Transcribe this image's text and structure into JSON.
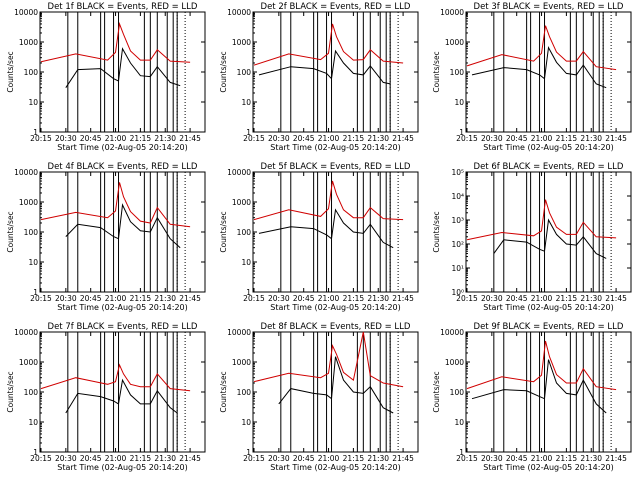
{
  "chart_data": [
    {
      "type": "line",
      "title": "Det 1f BLACK = Events, RED = LLD",
      "xlabel": "Start Time (02-Aug-05 20:14:20)",
      "ylabel": "Counts/sec",
      "ylim": [
        1,
        10000
      ],
      "y_scale": "log",
      "y_ticks": [
        "1",
        "10",
        "100",
        "1000",
        "10000"
      ],
      "x_ticks": [
        "20:15",
        "20:30",
        "20:45",
        "21:00",
        "21:15",
        "21:30",
        "21:45"
      ],
      "grid": false,
      "series": [
        {
          "color": "#000000",
          "x": [
            20.5,
            20.62,
            20.85,
            20.98,
            21.03,
            21.07,
            21.15,
            21.25,
            21.35,
            21.42,
            21.55,
            21.65
          ],
          "y": [
            30,
            120,
            130,
            60,
            50,
            600,
            200,
            75,
            70,
            150,
            45,
            35
          ]
        },
        {
          "color": "#d00000",
          "x": [
            20.25,
            20.6,
            20.92,
            21.0,
            21.04,
            21.08,
            21.15,
            21.25,
            21.35,
            21.42,
            21.55,
            21.75
          ],
          "y": [
            220,
            400,
            250,
            450,
            4000,
            1800,
            500,
            250,
            250,
            550,
            230,
            210
          ]
        }
      ]
    },
    {
      "type": "line",
      "title": "Det 2f BLACK = Events, RED = LLD",
      "xlabel": "Start Time (02-Aug-05 20:14:20)",
      "ylabel": "Counts/sec",
      "ylim": [
        1,
        10000
      ],
      "y_scale": "log",
      "y_ticks": [
        "1",
        "10",
        "100",
        "1000",
        "10000"
      ],
      "x_ticks": [
        "20:15",
        "20:30",
        "20:45",
        "21:00",
        "21:15",
        "21:30",
        "21:45"
      ],
      "grid": false,
      "series": [
        {
          "color": "#000000",
          "x": [
            20.3,
            20.62,
            20.85,
            20.98,
            21.03,
            21.07,
            21.15,
            21.25,
            21.35,
            21.42,
            21.55,
            21.62
          ],
          "y": [
            80,
            150,
            130,
            90,
            60,
            500,
            200,
            90,
            80,
            160,
            45,
            40
          ]
        },
        {
          "color": "#d00000",
          "x": [
            20.25,
            20.6,
            20.92,
            21.0,
            21.04,
            21.08,
            21.15,
            21.25,
            21.35,
            21.42,
            21.55,
            21.75
          ],
          "y": [
            170,
            400,
            260,
            420,
            4000,
            1500,
            480,
            250,
            260,
            550,
            230,
            200
          ]
        }
      ]
    },
    {
      "type": "line",
      "title": "Det 3f BLACK = Events, RED = LLD",
      "xlabel": "Start Time (02-Aug-05 20:14:20)",
      "ylabel": "Counts/sec",
      "ylim": [
        1,
        10000
      ],
      "y_scale": "log",
      "y_ticks": [
        "1",
        "10",
        "100",
        "1000",
        "10000"
      ],
      "x_ticks": [
        "20:15",
        "20:30",
        "20:45",
        "21:00",
        "21:15",
        "21:30",
        "21:45"
      ],
      "grid": false,
      "series": [
        {
          "color": "#000000",
          "x": [
            20.3,
            20.62,
            20.85,
            20.98,
            21.03,
            21.07,
            21.15,
            21.25,
            21.35,
            21.42,
            21.55,
            21.65
          ],
          "y": [
            80,
            140,
            120,
            80,
            60,
            650,
            210,
            90,
            80,
            170,
            40,
            30
          ]
        },
        {
          "color": "#d00000",
          "x": [
            20.25,
            20.6,
            20.92,
            21.0,
            21.04,
            21.08,
            21.15,
            21.25,
            21.35,
            21.42,
            21.55,
            21.75
          ],
          "y": [
            160,
            380,
            230,
            420,
            3500,
            1500,
            460,
            230,
            230,
            480,
            150,
            120
          ]
        }
      ]
    },
    {
      "type": "line",
      "title": "Det 4f BLACK = Events, RED = LLD",
      "xlabel": "Start Time (02-Aug-05 20:14:20)",
      "ylabel": "Counts/sec",
      "ylim": [
        1,
        10000
      ],
      "y_scale": "log",
      "y_ticks": [
        "1",
        "10",
        "100",
        "1000",
        "10000"
      ],
      "x_ticks": [
        "20:15",
        "20:30",
        "20:45",
        "21:00",
        "21:15",
        "21:30",
        "21:45"
      ],
      "grid": false,
      "series": [
        {
          "color": "#000000",
          "x": [
            20.5,
            20.62,
            20.85,
            20.98,
            21.03,
            21.07,
            21.15,
            21.25,
            21.35,
            21.42,
            21.55,
            21.65
          ],
          "y": [
            70,
            180,
            140,
            70,
            60,
            800,
            220,
            110,
            100,
            300,
            60,
            30
          ]
        },
        {
          "color": "#d00000",
          "x": [
            20.25,
            20.6,
            20.92,
            21.0,
            21.04,
            21.08,
            21.15,
            21.25,
            21.35,
            21.42,
            21.55,
            21.75
          ],
          "y": [
            260,
            450,
            300,
            500,
            4500,
            1500,
            480,
            230,
            200,
            650,
            180,
            150
          ]
        }
      ]
    },
    {
      "type": "line",
      "title": "Det 5f BLACK = Events, RED = LLD",
      "xlabel": "Start Time (02-Aug-05 20:14:20)",
      "ylabel": "Counts/sec",
      "ylim": [
        1,
        10000
      ],
      "y_scale": "log",
      "y_ticks": [
        "1",
        "10",
        "100",
        "1000",
        "10000"
      ],
      "x_ticks": [
        "20:15",
        "20:30",
        "20:45",
        "21:00",
        "21:15",
        "21:30",
        "21:45"
      ],
      "grid": false,
      "series": [
        {
          "color": "#000000",
          "x": [
            20.3,
            20.62,
            20.85,
            20.98,
            21.03,
            21.07,
            21.15,
            21.25,
            21.35,
            21.42,
            21.55,
            21.65
          ],
          "y": [
            90,
            150,
            130,
            80,
            60,
            550,
            200,
            100,
            90,
            180,
            45,
            30
          ]
        },
        {
          "color": "#d00000",
          "x": [
            20.25,
            20.6,
            20.92,
            21.0,
            21.04,
            21.08,
            21.15,
            21.25,
            21.35,
            21.42,
            21.55,
            21.75
          ],
          "y": [
            260,
            550,
            330,
            600,
            5000,
            1800,
            550,
            300,
            300,
            650,
            280,
            260
          ]
        }
      ]
    },
    {
      "type": "line",
      "title": "Det 6f BLACK = Events, RED = LLD",
      "xlabel": "Start Time (02-Aug-05 20:14:20)",
      "ylabel": "Counts/sec",
      "ylim": [
        1,
        100000
      ],
      "y_scale": "log",
      "y_ticks": [
        "10⁰",
        "10¹",
        "10²",
        "10³",
        "10⁴",
        "10⁵"
      ],
      "x_ticks": [
        "20:15",
        "20:30",
        "20:45",
        "21:00",
        "21:15",
        "21:30",
        "21:45"
      ],
      "grid": false,
      "series": [
        {
          "color": "#000000",
          "x": [
            20.52,
            20.62,
            20.85,
            20.98,
            21.03,
            21.07,
            21.15,
            21.25,
            21.35,
            21.42,
            21.55,
            21.65
          ],
          "y": [
            40,
            150,
            120,
            60,
            50,
            1000,
            250,
            100,
            90,
            200,
            40,
            25
          ]
        },
        {
          "color": "#d00000",
          "x": [
            20.25,
            20.6,
            20.92,
            21.0,
            21.04,
            21.08,
            21.15,
            21.25,
            21.35,
            21.42,
            21.55,
            21.75
          ],
          "y": [
            150,
            300,
            220,
            350,
            7000,
            2000,
            500,
            250,
            250,
            800,
            200,
            180
          ]
        }
      ]
    },
    {
      "type": "line",
      "title": "Det 7f BLACK = Events, RED = LLD",
      "xlabel": "Start Time (02-Aug-05 20:14:20)",
      "ylabel": "Counts/sec",
      "ylim": [
        1,
        10000
      ],
      "y_scale": "log",
      "y_ticks": [
        "1",
        "10",
        "100",
        "1000",
        "10000"
      ],
      "x_ticks": [
        "20:15",
        "20:30",
        "20:45",
        "21:00",
        "21:15",
        "21:30",
        "21:45"
      ],
      "grid": false,
      "series": [
        {
          "color": "#000000",
          "x": [
            20.5,
            20.62,
            20.85,
            20.98,
            21.03,
            21.07,
            21.15,
            21.25,
            21.35,
            21.42,
            21.55,
            21.62
          ],
          "y": [
            20,
            90,
            70,
            50,
            40,
            250,
            80,
            40,
            40,
            110,
            30,
            20
          ]
        },
        {
          "color": "#d00000",
          "x": [
            20.25,
            20.6,
            20.92,
            21.0,
            21.04,
            21.08,
            21.15,
            21.25,
            21.35,
            21.42,
            21.55,
            21.75
          ],
          "y": [
            130,
            300,
            180,
            220,
            800,
            400,
            180,
            150,
            150,
            400,
            130,
            110
          ]
        }
      ]
    },
    {
      "type": "line",
      "title": "Det 8f BLACK = Events, RED = LLD",
      "xlabel": "Start Time (02-Aug-05 20:14:20)",
      "ylabel": "Counts/sec",
      "ylim": [
        1,
        10000
      ],
      "y_scale": "log",
      "y_ticks": [
        "1",
        "10",
        "100",
        "1000",
        "10000"
      ],
      "x_ticks": [
        "20:15",
        "20:30",
        "20:45",
        "21:00",
        "21:15",
        "21:30",
        "21:45"
      ],
      "grid": false,
      "series": [
        {
          "color": "#000000",
          "x": [
            20.5,
            20.62,
            20.85,
            20.98,
            21.03,
            21.07,
            21.15,
            21.25,
            21.35,
            21.42,
            21.55,
            21.65
          ],
          "y": [
            40,
            130,
            90,
            80,
            60,
            1500,
            250,
            100,
            90,
            150,
            30,
            20
          ]
        },
        {
          "color": "#d00000",
          "x": [
            20.25,
            20.6,
            20.92,
            21.0,
            21.04,
            21.08,
            21.15,
            21.25,
            21.35,
            21.42,
            21.55,
            21.75
          ],
          "y": [
            220,
            420,
            300,
            420,
            3500,
            1800,
            450,
            250,
            10000,
            350,
            200,
            150
          ]
        }
      ]
    },
    {
      "type": "line",
      "title": "Det 9f BLACK = Events, RED = LLD",
      "xlabel": "Start Time (02-Aug-05 20:14:20)",
      "ylabel": "Counts/sec",
      "ylim": [
        1,
        10000
      ],
      "y_scale": "log",
      "y_ticks": [
        "1",
        "10",
        "100",
        "1000",
        "10000"
      ],
      "x_ticks": [
        "20:15",
        "20:30",
        "20:45",
        "21:00",
        "21:15",
        "21:30",
        "21:45"
      ],
      "grid": false,
      "series": [
        {
          "color": "#000000",
          "x": [
            20.3,
            20.62,
            20.85,
            20.98,
            21.03,
            21.07,
            21.15,
            21.25,
            21.35,
            21.42,
            21.55,
            21.65
          ],
          "y": [
            60,
            120,
            110,
            70,
            60,
            1200,
            200,
            90,
            80,
            250,
            40,
            20
          ]
        },
        {
          "color": "#d00000",
          "x": [
            20.25,
            20.6,
            20.92,
            21.0,
            21.04,
            21.08,
            21.15,
            21.25,
            21.35,
            21.42,
            21.55,
            21.75
          ],
          "y": [
            130,
            320,
            220,
            360,
            5000,
            1500,
            380,
            200,
            200,
            600,
            150,
            120
          ]
        }
      ]
    }
  ]
}
